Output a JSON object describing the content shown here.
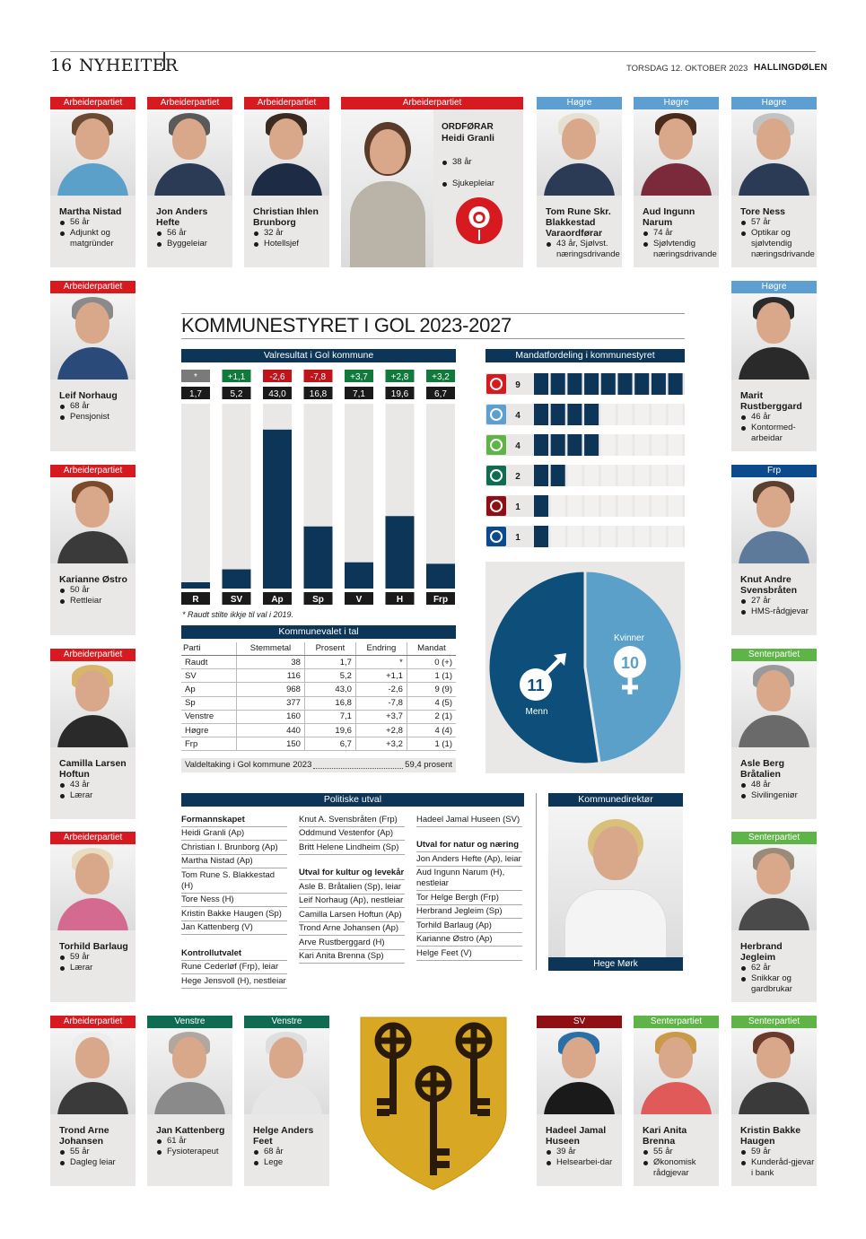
{
  "header": {
    "page_number": "16",
    "section": "NYHEITER",
    "date": "TORSDAG 12. OKTOBER 2023",
    "paper": "HALLINGDØLEN"
  },
  "title": "KOMMUNESTYRET I GOL 2023-2027",
  "colors": {
    "ap": "#d71920",
    "h": "#5d9fd0",
    "frp": "#0b4a8c",
    "sp": "#5eb446",
    "v": "#0f6c52",
    "sv": "#8e0f14",
    "navy": "#0d3557"
  },
  "mayor": {
    "party": "Arbeiderpartiet",
    "title": "ORDFØRAR",
    "name": "Heidi Granli",
    "age": "38 år",
    "job": "Sjukepleiar"
  },
  "members": [
    {
      "party": "Arbeiderpartiet",
      "name": "Martha Nistad",
      "age": "56 år",
      "job": "Adjunkt og matgründer"
    },
    {
      "party": "Arbeiderpartiet",
      "name": "Jon Anders Hefte",
      "age": "56 år",
      "job": "Byggeleiar"
    },
    {
      "party": "Arbeiderpartiet",
      "name": "Christian Ihlen Brunborg",
      "age": "32 år",
      "job": "Hotellsjef"
    },
    {
      "party": "Høgre",
      "name": "Tom Rune Skr. Blakkestad",
      "role": "Varaordførar",
      "age": "43 år, Sjølvst. næringsdrivande",
      "job": ""
    },
    {
      "party": "Høgre",
      "name": "Aud Ingunn Narum",
      "age": "74 år",
      "job": "Sjølvtendig næringsdrivande"
    },
    {
      "party": "Høgre",
      "name": "Tore Ness",
      "age": "57 år",
      "job": "Optikar og sjølvtendig næringsdrivande"
    },
    {
      "party": "Arbeiderpartiet",
      "name": "Leif Norhaug",
      "age": "68 år",
      "job": "Pensjonist"
    },
    {
      "party": "Høgre",
      "name": "Marit Rustberggard",
      "age": "46 år",
      "job": "Kontormed-arbeidar"
    },
    {
      "party": "Arbeiderpartiet",
      "name": "Karianne Østro",
      "age": "50 år",
      "job": "Rettleiar"
    },
    {
      "party": "Frp",
      "name": "Knut Andre Svensbråten",
      "age": "27 år",
      "job": "HMS-rådgjevar"
    },
    {
      "party": "Arbeiderpartiet",
      "name": "Camilla Larsen Hoftun",
      "age": "43 år",
      "job": "Lærar"
    },
    {
      "party": "Senterpartiet",
      "name": "Asle Berg Bråtalien",
      "age": "48 år",
      "job": "Sivilingeniør"
    },
    {
      "party": "Arbeiderpartiet",
      "name": "Torhild Barlaug",
      "age": "59 år",
      "job": "Lærar"
    },
    {
      "party": "Senterpartiet",
      "name": "Herbrand Jegleim",
      "age": "62 år",
      "job": "Snikkar og gardbrukar"
    },
    {
      "party": "Arbeiderpartiet",
      "name": "Trond Arne Johansen",
      "age": "55 år",
      "job": "Dagleg leiar"
    },
    {
      "party": "Venstre",
      "name": "Jan Kattenberg",
      "age": "61 år",
      "job": "Fysioterapeut"
    },
    {
      "party": "Venstre",
      "name": "Helge Anders Feet",
      "age": "68 år",
      "job": "Lege"
    },
    {
      "party": "SV",
      "name": "Hadeel Jamal Huseen",
      "age": "39 år",
      "job": "Helsearbei-dar"
    },
    {
      "party": "Senterpartiet",
      "name": "Kari Anita Brenna",
      "age": "55 år",
      "job": "Økonomisk rådgjevar"
    },
    {
      "party": "Senterpartiet",
      "name": "Kristin Bakke Haugen",
      "age": "59 år",
      "job": "Kunderåd-gjevar i bank"
    }
  ],
  "election": {
    "heading": "Valresultat i Gol kommune",
    "note": "* Raudt stilte ikkje til val i 2019.",
    "bars": [
      {
        "label": "R",
        "change": "*",
        "value_label": "1,7",
        "value": 1.7
      },
      {
        "label": "SV",
        "change": "+1,1",
        "value_label": "5,2",
        "value": 5.2
      },
      {
        "label": "Ap",
        "change": "-2,6",
        "value_label": "43,0",
        "value": 43.0
      },
      {
        "label": "Sp",
        "change": "-7,8",
        "value_label": "16,8",
        "value": 16.8
      },
      {
        "label": "V",
        "change": "+3,7",
        "value_label": "7,1",
        "value": 7.1
      },
      {
        "label": "H",
        "change": "+2,8",
        "value_label": "19,6",
        "value": 19.6
      },
      {
        "label": "Frp",
        "change": "+3,2",
        "value_label": "6,7",
        "value": 6.7
      }
    ]
  },
  "chart_data": [
    {
      "type": "bar",
      "title": "Valresultat i Gol kommune",
      "categories": [
        "R",
        "SV",
        "Ap",
        "Sp",
        "V",
        "H",
        "Frp"
      ],
      "values": [
        1.7,
        5.2,
        43.0,
        16.8,
        7.1,
        19.6,
        6.7
      ],
      "ylim": [
        0,
        50
      ]
    },
    {
      "type": "bar",
      "title": "Mandatfordeling i kommunestyret",
      "categories": [
        "Ap",
        "H",
        "Sp",
        "V",
        "SV",
        "Frp"
      ],
      "values": [
        9,
        4,
        4,
        2,
        1,
        1
      ],
      "ylim": [
        0,
        9
      ]
    },
    {
      "type": "pie",
      "categories": [
        "Menn",
        "Kvinner"
      ],
      "values": [
        11,
        10
      ]
    }
  ],
  "table": {
    "heading": "Kommunevalet i tal",
    "columns": [
      "Parti",
      "Stemmetal",
      "Prosent",
      "Endring",
      "Mandat"
    ],
    "rows": [
      [
        "Raudt",
        "38",
        "1,7",
        "*",
        "0 (+)"
      ],
      [
        "SV",
        "116",
        "5,2",
        "+1,1",
        "1 (1)"
      ],
      [
        "Ap",
        "968",
        "43,0",
        "-2,6",
        "9 (9)"
      ],
      [
        "Sp",
        "377",
        "16,8",
        "-7,8",
        "4 (5)"
      ],
      [
        "Venstre",
        "160",
        "7,1",
        "+3,7",
        "2 (1)"
      ],
      [
        "Høgre",
        "440",
        "19,6",
        "+2,8",
        "4 (4)"
      ],
      [
        "Frp",
        "150",
        "6,7",
        "+3,2",
        "1 (1)"
      ]
    ],
    "turnout_label": "Valdeltaking i Gol kommune 2023",
    "turnout_value": "59,4 prosent"
  },
  "seats": {
    "heading": "Mandatfordeling i kommunestyret",
    "rows": [
      {
        "party": "Ap",
        "logo": "rose-icon",
        "count": 9
      },
      {
        "party": "H",
        "logo": "hogre-wave-icon",
        "count": 4
      },
      {
        "party": "Sp",
        "logo": "clover-icon",
        "count": 4
      },
      {
        "party": "V",
        "logo": "v-icon",
        "count": 2
      },
      {
        "party": "SV",
        "logo": "sv-icon",
        "count": 1
      },
      {
        "party": "Frp",
        "logo": "frp-icon",
        "count": 1
      }
    ],
    "total_slots": 9,
    "men_label": "Menn",
    "men_count": "11",
    "women_label": "Kvinner",
    "women_count": "10"
  },
  "committees": {
    "heading": "Politiske utval",
    "col1": [
      {
        "t": "Formannskapet",
        "h": true
      },
      {
        "t": "Heidi Granli (Ap)"
      },
      {
        "t": "Christian I. Brunborg (Ap)"
      },
      {
        "t": "Martha Nistad (Ap)"
      },
      {
        "t": "Tom Rune S. Blakkestad (H)"
      },
      {
        "t": "Tore Ness (H)"
      },
      {
        "t": "Kristin Bakke Haugen (Sp)"
      },
      {
        "t": "Jan Kattenberg (V)"
      },
      {
        "gap": true
      },
      {
        "t": "Kontrollutvalet",
        "h": true
      },
      {
        "t": "Rune Cederløf (Frp), leiar"
      },
      {
        "t": "Hege Jensvoll (H), nestleiar"
      }
    ],
    "col2": [
      {
        "t": "Knut A. Svensbråten (Frp)"
      },
      {
        "t": "Oddmund Vestenfor (Ap)"
      },
      {
        "t": "Britt Helene Lindheim (Sp)"
      },
      {
        "gap": true
      },
      {
        "t": "Utval for kultur og levekår",
        "h": true
      },
      {
        "t": "Asle B. Bråtalien (Sp), leiar"
      },
      {
        "t": "Leif Norhaug (Ap), nestleiar"
      },
      {
        "t": "Camilla Larsen Hoftun (Ap)"
      },
      {
        "t": "Trond Arne Johansen (Ap)"
      },
      {
        "t": "Arve Rustberggard (H)"
      },
      {
        "t": "Kari Anita Brenna (Sp)"
      }
    ],
    "col3": [
      {
        "t": "Hadeel Jamal Huseen (SV)"
      },
      {
        "gap": true
      },
      {
        "t": "Utval for natur og næring",
        "h": true
      },
      {
        "t": "Jon Anders Hefte (Ap), leiar"
      },
      {
        "t": "Aud Ingunn Narum (H), nestleiar"
      },
      {
        "t": "Tor Helge Bergh (Frp)"
      },
      {
        "t": "Herbrand Jegleim (Sp)"
      },
      {
        "t": "Torhild Barlaug (Ap)"
      },
      {
        "t": "Karianne Østro (Ap)"
      },
      {
        "t": "Helge Feet (V)"
      }
    ]
  },
  "director": {
    "heading": "Kommunedirektør",
    "name": "Hege Mørk"
  }
}
